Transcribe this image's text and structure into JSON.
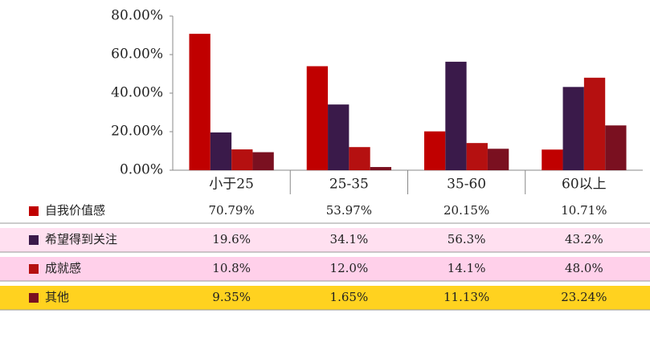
{
  "chart_data": {
    "type": "bar",
    "categories": [
      "小于25",
      "25-35",
      "35-60",
      "60以上"
    ],
    "series": [
      {
        "name": "自我价值感",
        "color": "#c00000",
        "values": [
          70.79,
          53.97,
          20.15,
          10.71
        ],
        "value_labels": [
          "70.79%",
          "53.97%",
          "20.15%",
          "10.71%"
        ]
      },
      {
        "name": "希望得到关注",
        "color": "#3a1a4a",
        "values": [
          19.6,
          34.1,
          56.3,
          43.2
        ],
        "value_labels": [
          "19.6%",
          "34.1%",
          "56.3%",
          "43.2%"
        ]
      },
      {
        "name": "成就感",
        "color": "#b51010",
        "values": [
          10.8,
          12.0,
          14.1,
          48.0
        ],
        "value_labels": [
          "10.8%",
          "12.0%",
          "14.1%",
          "48.0%"
        ]
      },
      {
        "name": "其他",
        "color": "#7a1020",
        "values": [
          9.35,
          1.65,
          11.13,
          23.24
        ],
        "value_labels": [
          "9.35%",
          "1.65%",
          "11.13%",
          "23.24%"
        ]
      }
    ],
    "ylim": [
      0,
      80
    ],
    "yticks": [
      {
        "value": 0,
        "label": "0.00%"
      },
      {
        "value": 20,
        "label": "20.00%"
      },
      {
        "value": 40,
        "label": "40.00%"
      },
      {
        "value": 60,
        "label": "60.00%"
      },
      {
        "value": 80,
        "label": "80.00%"
      }
    ],
    "grid": false
  }
}
